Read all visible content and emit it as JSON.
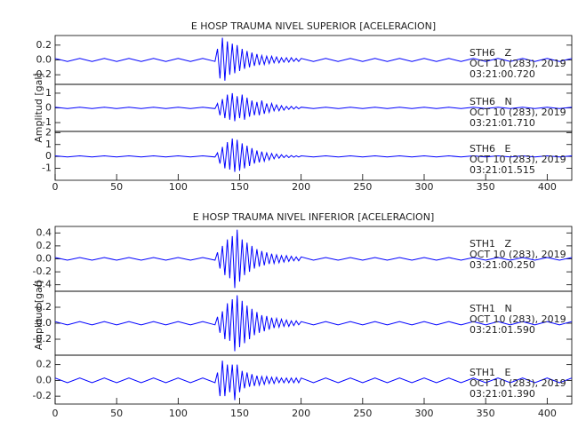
{
  "chart_data": [
    {
      "type": "line",
      "title": "E HOSP TRAUMA NIVEL SUPERIOR [ACELERACION]",
      "y_label": "Amplitud [gal]",
      "xlim": [
        0,
        420
      ],
      "xticks": [
        0,
        50,
        100,
        150,
        200,
        250,
        300,
        350,
        400
      ],
      "x": [
        0,
        10,
        20,
        30,
        40,
        50,
        60,
        70,
        80,
        90,
        100,
        110,
        120,
        130,
        132,
        134,
        136,
        138,
        140,
        142,
        144,
        146,
        148,
        150,
        152,
        154,
        156,
        158,
        160,
        162,
        164,
        166,
        168,
        170,
        172,
        174,
        176,
        178,
        180,
        182,
        184,
        186,
        188,
        190,
        192,
        194,
        196,
        198,
        200,
        210,
        220,
        230,
        240,
        250,
        260,
        270,
        280,
        290,
        300,
        310,
        320,
        330,
        340,
        350,
        360,
        370,
        380,
        390,
        400,
        410,
        420
      ],
      "panels": [
        {
          "name": "STH6   Z",
          "date": "OCT 10 (283), 2019",
          "time": "03:21:00.720",
          "color": "#0000ff",
          "ylim": [
            -0.33,
            0.33
          ],
          "yticks": [
            0.2,
            {
              "value": 0,
              "label": "0.0"
            },
            -0.2
          ],
          "values": [
            0.02,
            -0.02,
            0.02,
            -0.02,
            0.02,
            -0.02,
            0.02,
            -0.02,
            0.02,
            -0.02,
            0.02,
            -0.02,
            0.02,
            -0.02,
            0.15,
            -0.25,
            0.3,
            -0.28,
            0.25,
            -0.2,
            0.22,
            -0.18,
            0.2,
            -0.15,
            0.15,
            -0.12,
            0.12,
            -0.1,
            0.1,
            -0.08,
            0.08,
            -0.07,
            0.06,
            -0.06,
            0.05,
            -0.05,
            0.05,
            -0.04,
            0.04,
            -0.04,
            0.03,
            -0.03,
            0.03,
            -0.03,
            0.03,
            -0.02,
            0.02,
            -0.02,
            0.02,
            -0.02,
            0.02,
            -0.02,
            0.02,
            -0.02,
            0.02,
            -0.02,
            0.02,
            -0.02,
            0.02,
            -0.02,
            0.02,
            -0.02,
            0.02,
            -0.02,
            0.02,
            -0.02,
            0.02,
            -0.02,
            0.02,
            -0.02,
            0.02
          ]
        },
        {
          "name": "STH6   N",
          "date": "OCT 10 (283), 2019",
          "time": "03:21:01.710",
          "color": "#0000ff",
          "ylim": [
            -1.6,
            1.6
          ],
          "yticks": [
            1,
            0,
            -1
          ],
          "values": [
            0.05,
            -0.05,
            0.05,
            -0.05,
            0.05,
            -0.05,
            0.05,
            -0.05,
            0.05,
            -0.05,
            0.05,
            -0.05,
            0.05,
            -0.05,
            0.3,
            -0.5,
            0.6,
            -0.7,
            0.9,
            -0.8,
            1.0,
            -0.9,
            0.8,
            -0.7,
            0.9,
            -0.8,
            0.7,
            -0.6,
            0.5,
            -0.5,
            0.4,
            -0.5,
            0.5,
            -0.4,
            0.3,
            -0.3,
            0.3,
            -0.2,
            0.2,
            -0.2,
            0.15,
            -0.15,
            0.1,
            -0.1,
            0.1,
            -0.08,
            0.08,
            -0.06,
            0.05,
            -0.05,
            0.05,
            -0.05,
            0.05,
            -0.05,
            0.05,
            -0.05,
            0.05,
            -0.05,
            0.05,
            -0.05,
            0.05,
            -0.05,
            0.05,
            -0.05,
            0.05,
            -0.05,
            0.05,
            -0.05,
            0.05,
            -0.05,
            0.05
          ]
        },
        {
          "name": "STH6   E",
          "date": "OCT 10 (283), 2019",
          "time": "03:21:01.515",
          "color": "#0000ff",
          "ylim": [
            -2,
            2.1
          ],
          "yticks": [
            2,
            1,
            0,
            -1
          ],
          "values": [
            0.05,
            -0.05,
            0.05,
            -0.05,
            0.05,
            -0.05,
            0.05,
            -0.05,
            0.05,
            -0.05,
            0.05,
            -0.05,
            0.05,
            -0.05,
            0.3,
            -0.6,
            0.8,
            -1.0,
            1.2,
            -1.1,
            1.5,
            -1.3,
            1.4,
            -1.2,
            1.1,
            -1.0,
            0.9,
            -0.8,
            0.7,
            -0.6,
            0.5,
            -0.5,
            0.4,
            -0.4,
            0.3,
            -0.3,
            0.25,
            -0.2,
            0.2,
            -0.15,
            0.15,
            -0.1,
            0.1,
            -0.1,
            0.08,
            -0.06,
            0.06,
            -0.05,
            0.05,
            -0.05,
            0.05,
            -0.05,
            0.05,
            -0.05,
            0.05,
            -0.05,
            0.05,
            -0.05,
            0.05,
            -0.05,
            0.05,
            -0.05,
            0.05,
            -0.05,
            0.05,
            -0.05,
            0.05,
            -0.05,
            0.05,
            -0.05,
            0.05
          ]
        }
      ]
    },
    {
      "type": "line",
      "title": "E HOSP TRAUMA NIVEL INFERIOR [ACELERACION]",
      "y_label": "Amplitud [gal]",
      "xlim": [
        0,
        420
      ],
      "xticks": [
        0,
        50,
        100,
        150,
        200,
        250,
        300,
        350,
        400
      ],
      "x": [
        0,
        10,
        20,
        30,
        40,
        50,
        60,
        70,
        80,
        90,
        100,
        110,
        120,
        130,
        132,
        134,
        136,
        138,
        140,
        142,
        144,
        146,
        148,
        150,
        152,
        154,
        156,
        158,
        160,
        162,
        164,
        166,
        168,
        170,
        172,
        174,
        176,
        178,
        180,
        182,
        184,
        186,
        188,
        190,
        192,
        194,
        196,
        198,
        200,
        210,
        220,
        230,
        240,
        250,
        260,
        270,
        280,
        290,
        300,
        310,
        320,
        330,
        340,
        350,
        360,
        370,
        380,
        390,
        400,
        410,
        420
      ],
      "panels": [
        {
          "name": "STH1   Z",
          "date": "OCT 10 (283), 2019",
          "time": "03:21:00.250",
          "color": "#0000ff",
          "ylim": [
            -0.5,
            0.5
          ],
          "yticks": [
            0.4,
            0.2,
            {
              "value": 0,
              "label": "0.0"
            },
            -0.2,
            -0.4
          ],
          "values": [
            0.02,
            -0.02,
            0.02,
            -0.02,
            0.02,
            -0.02,
            0.02,
            -0.02,
            0.02,
            -0.02,
            0.02,
            -0.02,
            0.02,
            -0.02,
            0.1,
            -0.15,
            0.2,
            -0.25,
            0.3,
            -0.3,
            0.35,
            -0.45,
            0.45,
            -0.35,
            0.3,
            -0.25,
            0.25,
            -0.2,
            0.2,
            -0.15,
            0.15,
            -0.12,
            0.12,
            -0.1,
            0.1,
            -0.08,
            0.08,
            -0.07,
            0.06,
            -0.06,
            0.05,
            -0.05,
            0.05,
            -0.04,
            0.04,
            -0.03,
            0.03,
            -0.03,
            0.03,
            -0.02,
            0.02,
            -0.02,
            0.02,
            -0.02,
            0.02,
            -0.02,
            0.02,
            -0.02,
            0.02,
            -0.02,
            0.02,
            -0.02,
            0.02,
            -0.02,
            0.02,
            -0.02,
            0.02,
            -0.02,
            0.02,
            -0.02,
            0.02
          ]
        },
        {
          "name": "STH1   N",
          "date": "OCT 10 (283), 2019",
          "time": "03:21:01.590",
          "color": "#0000ff",
          "ylim": [
            -0.4,
            0.4
          ],
          "yticks": [
            0.2,
            {
              "value": 0,
              "label": "0.0"
            },
            -0.2
          ],
          "values": [
            0.02,
            -0.02,
            0.02,
            -0.02,
            0.02,
            -0.02,
            0.02,
            -0.02,
            0.02,
            -0.02,
            0.02,
            -0.02,
            0.02,
            -0.02,
            0.08,
            -0.12,
            0.15,
            -0.2,
            0.25,
            -0.22,
            0.3,
            -0.35,
            0.35,
            -0.3,
            0.28,
            -0.25,
            0.22,
            -0.2,
            0.18,
            -0.15,
            0.14,
            -0.12,
            0.1,
            -0.1,
            0.09,
            -0.08,
            0.07,
            -0.06,
            0.06,
            -0.05,
            0.05,
            -0.04,
            0.04,
            -0.04,
            0.03,
            -0.03,
            0.03,
            -0.02,
            0.02,
            -0.02,
            0.02,
            -0.02,
            0.02,
            -0.02,
            0.02,
            -0.02,
            0.02,
            -0.02,
            0.02,
            -0.02,
            0.02,
            -0.02,
            0.02,
            -0.02,
            0.02,
            -0.02,
            0.02,
            -0.02,
            0.02,
            -0.02,
            0.02
          ]
        },
        {
          "name": "STH1   E",
          "date": "OCT 10 (283), 2019",
          "time": "03:21:01.390",
          "color": "#0000ff",
          "ylim": [
            -0.3,
            0.32
          ],
          "yticks": [
            0.2,
            {
              "value": 0,
              "label": "0.0"
            },
            -0.2
          ],
          "values": [
            0.03,
            -0.03,
            0.03,
            -0.03,
            0.03,
            -0.03,
            0.03,
            -0.03,
            0.03,
            -0.03,
            0.03,
            -0.03,
            0.03,
            -0.03,
            0.1,
            -0.2,
            0.25,
            -0.2,
            0.2,
            -0.15,
            0.2,
            -0.25,
            0.2,
            -0.15,
            0.12,
            -0.1,
            0.1,
            -0.08,
            0.08,
            -0.07,
            0.06,
            -0.06,
            0.05,
            -0.05,
            0.05,
            -0.04,
            0.04,
            -0.04,
            0.04,
            -0.03,
            0.03,
            -0.03,
            0.03,
            -0.03,
            0.03,
            -0.03,
            0.03,
            -0.03,
            0.03,
            -0.03,
            0.03,
            -0.03,
            0.03,
            -0.03,
            0.03,
            -0.03,
            0.03,
            -0.03,
            0.03,
            -0.03,
            0.03,
            -0.03,
            0.03,
            -0.03,
            0.03,
            -0.03,
            0.03,
            -0.03,
            0.03,
            -0.03,
            0.03
          ]
        }
      ]
    }
  ]
}
